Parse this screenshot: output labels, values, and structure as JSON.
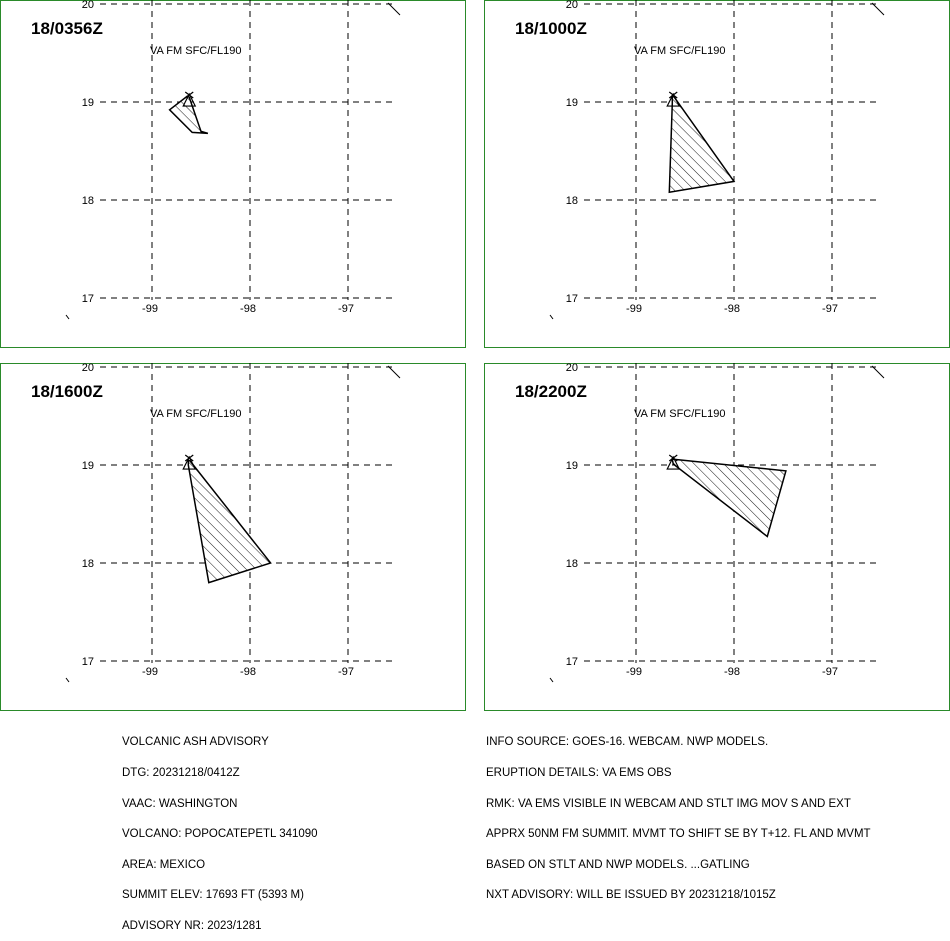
{
  "map": {
    "lat_ticks": [
      20,
      19,
      18,
      17
    ],
    "lon_ticks": [
      -99,
      -98,
      -97
    ],
    "lat_labels": [
      "20",
      "19",
      "18",
      "17"
    ],
    "lon_labels": [
      "-99",
      "-98",
      "-97"
    ],
    "lon_range": [
      -99.0,
      -97.0
    ],
    "lat_range": [
      17.0,
      20.0
    ],
    "volcano": {
      "name": "POPOCATEPETL",
      "lat": 19.02,
      "lon": -98.62
    },
    "cloud_hatch": "diagonal",
    "frame_color": "#2a8a2a"
  },
  "panels": [
    {
      "time": "18/0356Z",
      "layer": "VA FM SFC/FL190",
      "cloud": [
        [
          -98.64,
          19.06
        ],
        [
          -98.62,
          19.05
        ],
        [
          -98.5,
          18.7
        ],
        [
          -98.43,
          18.68
        ],
        [
          -98.59,
          18.69
        ],
        [
          -98.82,
          18.92
        ]
      ]
    },
    {
      "time": "18/1000Z",
      "layer": "VA FM SFC/FL190",
      "cloud": [
        [
          -98.63,
          19.06
        ],
        [
          -98.61,
          19.05
        ],
        [
          -98.0,
          18.19
        ],
        [
          -98.66,
          18.08
        ],
        [
          -98.63,
          18.99
        ]
      ]
    },
    {
      "time": "18/1600Z",
      "layer": "VA FM SFC/FL190",
      "cloud": [
        [
          -98.63,
          19.05
        ],
        [
          -98.61,
          19.04
        ],
        [
          -97.79,
          18.0
        ],
        [
          -98.42,
          17.8
        ],
        [
          -98.63,
          19.0
        ]
      ]
    },
    {
      "time": "18/2200Z",
      "layer": "VA FM SFC/FL190",
      "cloud": [
        [
          -98.63,
          19.06
        ],
        [
          -97.47,
          18.94
        ],
        [
          -97.66,
          18.27
        ],
        [
          -98.62,
          19.01
        ]
      ]
    }
  ],
  "advisory": {
    "left_lines": [
      "VOLCANIC ASH ADVISORY",
      "DTG: 20231218/0412Z",
      "VAAC: WASHINGTON",
      "VOLCANO: POPOCATEPETL 341090",
      "AREA: MEXICO",
      "SUMMIT ELEV: 17693 FT (5393 M)",
      "ADVISORY NR: 2023/1281"
    ],
    "right_lines": [
      "INFO SOURCE: GOES-16. WEBCAM. NWP MODELS.",
      "ERUPTION DETAILS: VA EMS OBS",
      "RMK: VA EMS VISIBLE IN WEBCAM AND STLT IMG MOV S AND EXT",
      "APPRX 50NM FM SUMMIT. MVMT TO SHIFT SE BY T+12. FL AND MVMT",
      "BASED ON STLT AND NWP MODELS. ...GATLING",
      "NXT ADVISORY: WILL BE ISSUED BY 20231218/1015Z"
    ]
  }
}
